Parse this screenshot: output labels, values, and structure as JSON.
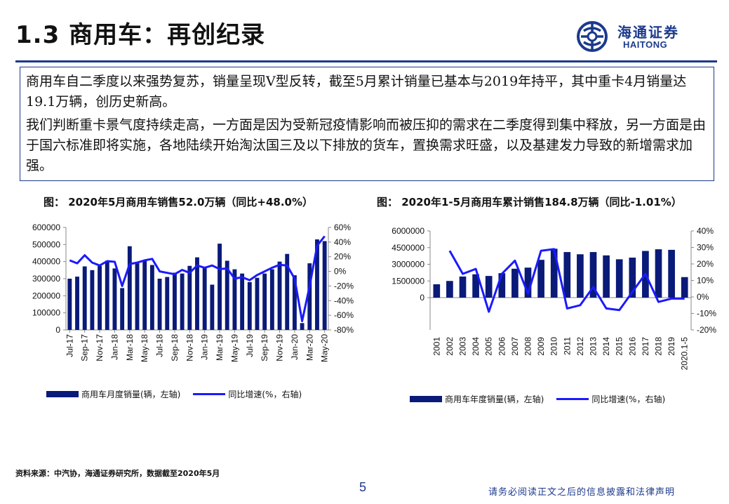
{
  "header": {
    "title": "1.3 商用车：再创纪录",
    "logo_cn": "海通证券",
    "logo_en": "HAITONG"
  },
  "summary": {
    "p1": "商用车自二季度以来强势复苏，销量呈现V型反转，截至5月累计销量已基本与2019年持平，其中重卡4月销量达19.1万辆，创历史新高。",
    "p2": "我们判断重卡景气度持续走高，一方面是因为受新冠疫情影响而被压抑的需求在二季度得到集中释放，另一方面是由于国六标准即将实施，各地陆续开始淘汰国三及以下排放的货车，置换需求旺盛，以及基建发力导致的新增需求加强。"
  },
  "footer": {
    "source": "资料来源：中汽协，海通证券研究所，数据截至2020年5月",
    "page": "5",
    "disclaimer": "请务必阅读正文之后的信息披露和法律声明"
  },
  "colors": {
    "bar": "#0a1a78",
    "line": "#1a1aff",
    "brand": "#1c3a8c"
  },
  "chart_data": [
    {
      "type": "bar",
      "title": "图：  2020年5月商用车销售52.0万辆（同比+48.0%）",
      "categories": [
        "Jul-17",
        "Aug-17",
        "Sep-17",
        "Oct-17",
        "Nov-17",
        "Dec-17",
        "Jan-18",
        "Feb-18",
        "Mar-18",
        "Apr-18",
        "May-18",
        "Jun-18",
        "Jul-18",
        "Aug-18",
        "Sep-18",
        "Oct-18",
        "Nov-18",
        "Dec-18",
        "Jan-19",
        "Feb-19",
        "Mar-19",
        "Apr-19",
        "May-19",
        "Jun-19",
        "Jul-19",
        "Aug-19",
        "Sep-19",
        "Oct-19",
        "Nov-19",
        "Dec-19",
        "Jan-20",
        "Feb-20",
        "Mar-20",
        "Apr-20",
        "May-20"
      ],
      "tick_labels": [
        "Jul-17",
        "Sep-17",
        "Nov-17",
        "Jan-18",
        "Mar-18",
        "May-18",
        "Jul-18",
        "Sep-18",
        "Nov-18",
        "Jan-19",
        "Mar-19",
        "May-19",
        "Jul-19",
        "Sep-19",
        "Nov-19",
        "Jan-20",
        "Mar-20",
        "May-20"
      ],
      "series": [
        {
          "name": "商用车月度销量(辆，左轴)",
          "axis": "left",
          "type": "bar",
          "values": [
            300000,
            312000,
            372000,
            350000,
            375000,
            405000,
            360000,
            245000,
            490000,
            390000,
            410000,
            380000,
            300000,
            310000,
            335000,
            330000,
            375000,
            425000,
            365000,
            265000,
            505000,
            405000,
            355000,
            330000,
            280000,
            305000,
            330000,
            355000,
            400000,
            445000,
            320000,
            40000,
            390000,
            530000,
            520000
          ]
        },
        {
          "name": "同比增速(%，右轴)",
          "axis": "right",
          "type": "line",
          "values": [
            15,
            11,
            22,
            12,
            8,
            14,
            13,
            -20,
            10,
            12,
            15,
            17,
            0,
            -2,
            -4,
            2,
            -2,
            8,
            5,
            8,
            3,
            4,
            -10,
            -8,
            -12,
            -5,
            0,
            5,
            9,
            8,
            -10,
            -68,
            -20,
            35,
            48
          ]
        }
      ],
      "y_left": {
        "min": 0,
        "max": 600000,
        "step": 100000,
        "labels": [
          "0",
          "100000",
          "200000",
          "300000",
          "400000",
          "500000",
          "600000"
        ]
      },
      "y_right": {
        "min": -80,
        "max": 60,
        "step": 20,
        "labels": [
          "-80%",
          "-60%",
          "-40%",
          "-20%",
          "0%",
          "20%",
          "40%",
          "60%"
        ]
      },
      "legend": [
        "商用车月度销量(辆，左轴)",
        "同比增速(%，右轴)"
      ]
    },
    {
      "type": "bar",
      "title": "图：  2020年1-5月商用车累计销售184.8万辆（同比-1.01%）",
      "categories": [
        "2001",
        "2002",
        "2003",
        "2004",
        "2005",
        "2006",
        "2007",
        "2008",
        "2009",
        "2010",
        "2011",
        "2012",
        "2013",
        "2014",
        "2015",
        "2016",
        "2017",
        "2018",
        "2019",
        "2020.1-5"
      ],
      "series": [
        {
          "name": "商用车年度销量(辆，左轴)",
          "axis": "left",
          "type": "bar",
          "values": [
            1200000,
            1500000,
            1900000,
            2100000,
            1950000,
            2200000,
            2600000,
            2700000,
            3400000,
            4400000,
            4100000,
            3900000,
            4100000,
            3800000,
            3450000,
            3600000,
            4200000,
            4350000,
            4300000,
            1848000
          ]
        },
        {
          "name": "同比增速(%，右轴)",
          "axis": "right",
          "type": "line",
          "values": [
            null,
            28,
            14,
            17,
            -9,
            14,
            22,
            2,
            28,
            29,
            -7,
            -5,
            6,
            -7,
            -8,
            3,
            14,
            -3,
            -1,
            -1
          ]
        }
      ],
      "y_left": {
        "min": 0,
        "max": 6000000,
        "step": 1500000,
        "labels": [
          "0",
          "1500000",
          "3000000",
          "4500000",
          "6000000"
        ]
      },
      "y_right": {
        "min": -20,
        "max": 40,
        "step": 10,
        "labels": [
          "-20%",
          "-10%",
          "0%",
          "10%",
          "20%",
          "30%",
          "40%"
        ]
      },
      "legend": [
        "商用车年度销量(辆，左轴)",
        "同比增速(%，右轴)"
      ]
    }
  ]
}
